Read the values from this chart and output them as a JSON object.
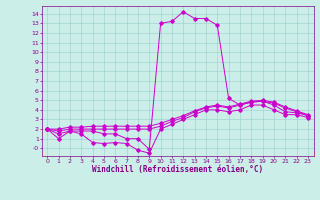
{
  "xlabel": "Windchill (Refroidissement éolien,°C)",
  "xlim": [
    -0.5,
    23.5
  ],
  "ylim": [
    -0.8,
    14.8
  ],
  "xticks": [
    0,
    1,
    2,
    3,
    4,
    5,
    6,
    7,
    8,
    9,
    10,
    11,
    12,
    13,
    14,
    15,
    16,
    17,
    18,
    19,
    20,
    21,
    22,
    23
  ],
  "yticks": [
    0,
    1,
    2,
    3,
    4,
    5,
    6,
    7,
    8,
    9,
    10,
    11,
    12,
    13,
    14
  ],
  "bg_color": "#cceee8",
  "line_color": "#cc00cc",
  "grid_color": "#99cccc",
  "curve1_x": [
    0,
    1,
    2,
    3,
    4,
    5,
    6,
    7,
    8,
    9,
    10,
    11,
    12,
    13,
    14,
    15,
    16,
    17,
    18,
    19,
    20,
    21,
    22,
    23
  ],
  "curve1_y": [
    2,
    1,
    1.8,
    1.8,
    1.8,
    1.5,
    1.5,
    1,
    1,
    -0.1,
    13,
    13.2,
    14.2,
    13.5,
    13.5,
    12.8,
    5.2,
    4.5,
    4.8,
    4.9,
    4.5,
    3.8,
    3.7,
    3.4
  ],
  "curve2_x": [
    0,
    1,
    2,
    3,
    4,
    5,
    6,
    7,
    8,
    9,
    10,
    11,
    12,
    13,
    14,
    15,
    16,
    17,
    18,
    19,
    20,
    21,
    22,
    23
  ],
  "curve2_y": [
    2,
    1.5,
    1.8,
    1.5,
    0.6,
    0.5,
    0.6,
    0.5,
    -0.2,
    -0.5,
    2,
    2.5,
    3,
    3.5,
    4,
    4,
    3.8,
    4,
    4.5,
    4.5,
    4,
    3.5,
    3.5,
    3.2
  ],
  "curve3_x": [
    0,
    1,
    2,
    3,
    4,
    5,
    6,
    7,
    8,
    9,
    10,
    11,
    12,
    13,
    14,
    15,
    16,
    17,
    18,
    19,
    20,
    21,
    22,
    23
  ],
  "curve3_y": [
    2,
    1.8,
    2,
    2,
    2,
    2,
    2,
    2,
    2,
    2,
    2.3,
    2.8,
    3.2,
    3.8,
    4.2,
    4.4,
    4.2,
    4.5,
    4.8,
    4.9,
    4.7,
    4.2,
    3.8,
    3.4
  ],
  "curve4_x": [
    0,
    1,
    2,
    3,
    4,
    5,
    6,
    7,
    8,
    9,
    10,
    11,
    12,
    13,
    14,
    15,
    16,
    17,
    18,
    19,
    20,
    21,
    22,
    23
  ],
  "curve4_y": [
    2,
    2,
    2.2,
    2.2,
    2.3,
    2.3,
    2.3,
    2.3,
    2.3,
    2.3,
    2.6,
    3,
    3.4,
    3.9,
    4.3,
    4.5,
    4.3,
    4.6,
    4.9,
    5,
    4.8,
    4.3,
    3.9,
    3.5
  ],
  "tick_color": "#880088",
  "tick_fontsize": 4.5,
  "xlabel_fontsize": 5.5,
  "marker_size": 1.8,
  "linewidth": 0.7
}
